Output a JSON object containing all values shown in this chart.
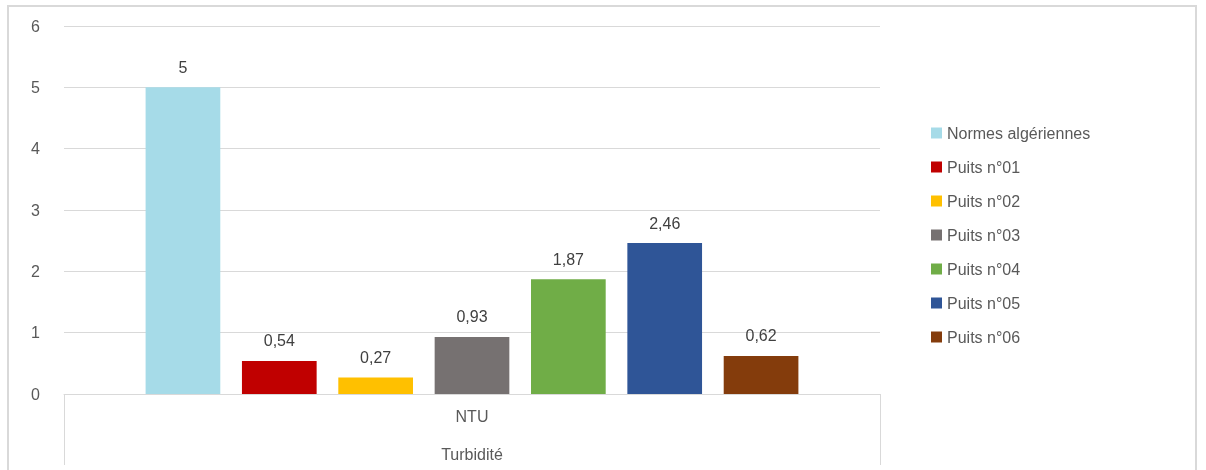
{
  "chart_data": {
    "type": "bar",
    "categories": [
      "NTU"
    ],
    "xlabel": "Turbidité",
    "series": [
      {
        "name": "Normes algériennes",
        "color": "#a6dbe8",
        "values": [
          5
        ],
        "value_labels": [
          "5"
        ]
      },
      {
        "name": "Puits n°01",
        "color": "#c00000",
        "values": [
          0.54
        ],
        "value_labels": [
          "0,54"
        ]
      },
      {
        "name": "Puits n°02",
        "color": "#ffc000",
        "values": [
          0.27
        ],
        "value_labels": [
          "0,27"
        ]
      },
      {
        "name": "Puits n°03",
        "color": "#767171",
        "values": [
          0.93
        ],
        "value_labels": [
          "0,93"
        ]
      },
      {
        "name": "Puits n°04",
        "color": "#70ad47",
        "values": [
          1.87
        ],
        "value_labels": [
          "1,87"
        ]
      },
      {
        "name": "Puits n°05",
        "color": "#2f5597",
        "values": [
          2.46
        ],
        "value_labels": [
          "2,46"
        ]
      },
      {
        "name": "Puits n°06",
        "color": "#843c0c",
        "values": [
          0.62
        ],
        "value_labels": [
          "0,62"
        ]
      }
    ],
    "ylim": [
      0,
      6
    ],
    "yticks": [
      0,
      1,
      2,
      3,
      4,
      5,
      6
    ],
    "grid": "y",
    "legend": "right"
  }
}
